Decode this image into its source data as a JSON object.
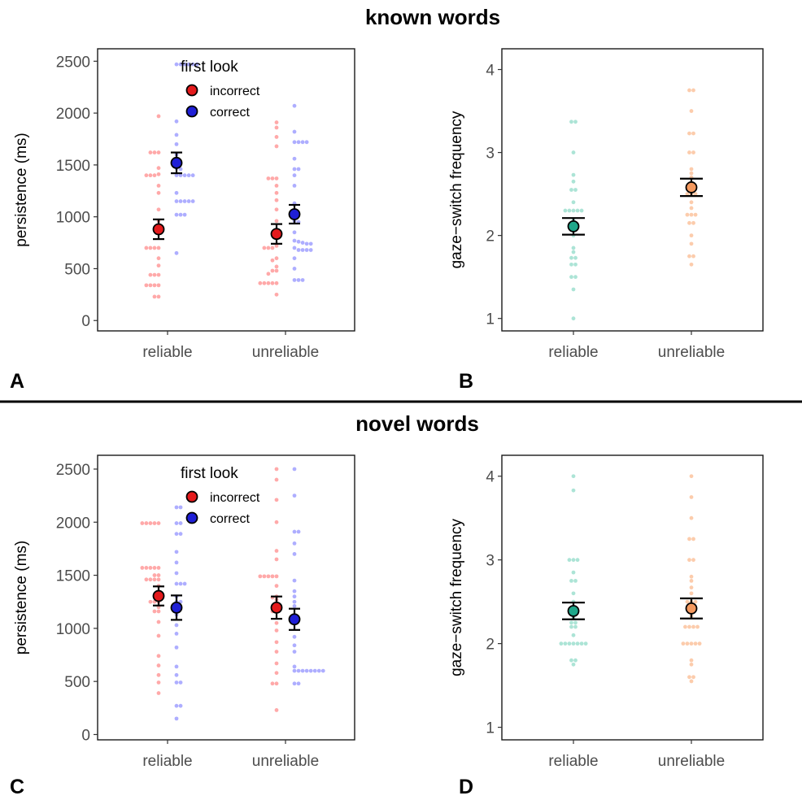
{
  "sections": {
    "top_title": "known words",
    "bottom_title": "novel words"
  },
  "panel_labels": [
    "A",
    "B",
    "C",
    "D"
  ],
  "colors": {
    "incorrect": "#e41a1c",
    "correct": "#1f1fd6",
    "incorrect_light": "#ff9a9a",
    "correct_light": "#a0a0ff",
    "reliable_gs": "#1fa78a",
    "reliable_gs_light": "#a8e3d4",
    "unreliable_gs": "#f4995f",
    "unreliable_gs_light": "#fcc9a8"
  },
  "chart_data": [
    {
      "id": "A",
      "type": "scatter",
      "subtype": "dot-strip with mean and error bars",
      "section": "known words",
      "categories": [
        "reliable",
        "unreliable"
      ],
      "xlabel": "",
      "ylabel": "persistence (ms)",
      "ylim": [
        -100,
        2620
      ],
      "yticks": [
        0,
        500,
        1000,
        1500,
        2000,
        2500
      ],
      "legend": {
        "title": "first look",
        "position": "top-center",
        "entries": [
          "incorrect",
          "correct"
        ]
      },
      "series": [
        {
          "name": "incorrect",
          "color_key": "incorrect",
          "means": [
            880,
            835
          ],
          "errors": [
            95,
            95
          ],
          "points": [
            [
              1970,
              1620,
              1620,
              1620,
              1470,
              1410,
              1400,
              1400,
              1400,
              1300,
              1230,
              1070,
              960,
              840,
              700,
              700,
              700,
              700,
              600,
              530,
              440,
              440,
              440,
              340,
              340,
              340,
              340,
              230,
              230
            ],
            [
              1910,
              1860,
              1770,
              1680,
              1370,
              1370,
              1370,
              1300,
              1230,
              1160,
              1070,
              960,
              820,
              720,
              700,
              700,
              700,
              600,
              580,
              520,
              480,
              480,
              450,
              360,
              360,
              360,
              360,
              360,
              250
            ]
          ]
        },
        {
          "name": "correct",
          "color_key": "correct",
          "means": [
            1520,
            1025
          ],
          "errors": [
            100,
            90
          ],
          "points": [
            [
              2470,
              2470,
              2470,
              2470,
              2470,
              2470,
              1920,
              1790,
              1700,
              1600,
              1560,
              1470,
              1460,
              1400,
              1400,
              1400,
              1400,
              1400,
              1230,
              1150,
              1150,
              1150,
              1150,
              1150,
              1020,
              1020,
              1020,
              650
            ],
            [
              2070,
              1820,
              1720,
              1720,
              1720,
              1720,
              1560,
              1460,
              1460,
              1400,
              1300,
              1130,
              960,
              950,
              850,
              770,
              760,
              750,
              740,
              740,
              700,
              680,
              680,
              680,
              680,
              600,
              500,
              390,
              390,
              390
            ]
          ]
        }
      ]
    },
    {
      "id": "B",
      "type": "scatter",
      "subtype": "dot-strip with mean and error bars",
      "section": "known words",
      "categories": [
        "reliable",
        "unreliable"
      ],
      "xlabel": "",
      "ylabel": "gaze−switch frequency",
      "ylim": [
        0.85,
        4.25
      ],
      "yticks": [
        1,
        2,
        3,
        4
      ],
      "series": [
        {
          "name": "reliable",
          "color_key": "reliable_gs",
          "mean": 2.11,
          "error": 0.1,
          "points": [
            3.37,
            3.37,
            3.0,
            2.73,
            2.65,
            2.55,
            2.55,
            2.4,
            2.3,
            2.3,
            2.3,
            2.3,
            2.3,
            2.2,
            2.15,
            2.0,
            1.85,
            1.8,
            1.73,
            1.73,
            1.65,
            1.65,
            1.5,
            1.5,
            1.35,
            1.0
          ]
        },
        {
          "name": "unreliable",
          "color_key": "unreliable_gs",
          "mean": 2.58,
          "error": 0.105,
          "points": [
            3.75,
            3.75,
            3.5,
            3.23,
            3.23,
            3.0,
            3.0,
            2.8,
            2.75,
            2.7,
            2.6,
            2.5,
            2.5,
            2.5,
            2.4,
            2.33,
            2.25,
            2.25,
            2.25,
            2.15,
            2.15,
            2.0,
            1.9,
            1.75,
            1.75,
            1.65
          ]
        }
      ]
    },
    {
      "id": "C",
      "type": "scatter",
      "subtype": "dot-strip with mean and error bars",
      "section": "novel words",
      "categories": [
        "reliable",
        "unreliable"
      ],
      "xlabel": "",
      "ylabel": "persistence (ms)",
      "ylim": [
        -50,
        2630
      ],
      "yticks": [
        0,
        500,
        1000,
        1500,
        2000,
        2500
      ],
      "legend": {
        "title": "first look",
        "position": "top-center",
        "entries": [
          "incorrect",
          "correct"
        ]
      },
      "series": [
        {
          "name": "incorrect",
          "color_key": "incorrect",
          "means": [
            1305,
            1195
          ],
          "errors": [
            90,
            105
          ],
          "points": [
            [
              1990,
              1990,
              1990,
              1990,
              1990,
              1570,
              1570,
              1570,
              1570,
              1570,
              1500,
              1500,
              1460,
              1460,
              1460,
              1460,
              1400,
              1300,
              1250,
              1250,
              1250,
              1200,
              1160,
              1160,
              1060,
              930,
              740,
              650,
              560,
              490,
              390
            ],
            [
              2500,
              2400,
              2210,
              2000,
              1730,
              1650,
              1490,
              1490,
              1490,
              1490,
              1490,
              1400,
              1300,
              1290,
              1270,
              1230,
              1160,
              1160,
              1050,
              980,
              870,
              780,
              670,
              580,
              480,
              480,
              230
            ]
          ]
        },
        {
          "name": "correct",
          "color_key": "correct",
          "means": [
            1195,
            1085
          ],
          "errors": [
            115,
            100
          ],
          "points": [
            [
              2140,
              2140,
              1990,
              1990,
              1890,
              1890,
              1720,
              1620,
              1520,
              1420,
              1420,
              1420,
              1300,
              1250,
              1250,
              1200,
              1130,
              1030,
              950,
              820,
              640,
              560,
              490,
              490,
              270,
              270,
              150
            ],
            [
              2500,
              2250,
              1910,
              1910,
              1800,
              1700,
              1450,
              1350,
              1300,
              1250,
              1210,
              1100,
              1050,
              920,
              840,
              780,
              640,
              600,
              600,
              600,
              600,
              600,
              600,
              600,
              600,
              480,
              480
            ]
          ]
        }
      ]
    },
    {
      "id": "D",
      "type": "scatter",
      "subtype": "dot-strip with mean and error bars",
      "section": "novel words",
      "categories": [
        "reliable",
        "unreliable"
      ],
      "xlabel": "",
      "ylabel": "gaze−switch frequency",
      "ylim": [
        0.85,
        4.25
      ],
      "yticks": [
        1,
        2,
        3,
        4
      ],
      "series": [
        {
          "name": "reliable",
          "color_key": "reliable_gs",
          "mean": 2.39,
          "error": 0.1,
          "points": [
            4.0,
            3.83,
            3.0,
            3.0,
            3.0,
            2.85,
            2.75,
            2.75,
            2.6,
            2.5,
            2.4,
            2.3,
            2.25,
            2.25,
            2.2,
            2.2,
            2.1,
            2.0,
            2.0,
            2.0,
            2.0,
            2.0,
            2.0,
            2.0,
            1.8,
            1.8,
            1.75
          ]
        },
        {
          "name": "unreliable",
          "color_key": "unreliable_gs",
          "mean": 2.42,
          "error": 0.12,
          "points": [
            4.0,
            3.75,
            3.5,
            3.25,
            3.25,
            3.0,
            3.0,
            2.8,
            2.75,
            2.67,
            2.6,
            2.5,
            2.5,
            2.5,
            2.33,
            2.2,
            2.2,
            2.2,
            2.2,
            2.0,
            2.0,
            2.0,
            2.0,
            2.0,
            1.8,
            1.75,
            1.6,
            1.6,
            1.55
          ]
        }
      ]
    }
  ]
}
